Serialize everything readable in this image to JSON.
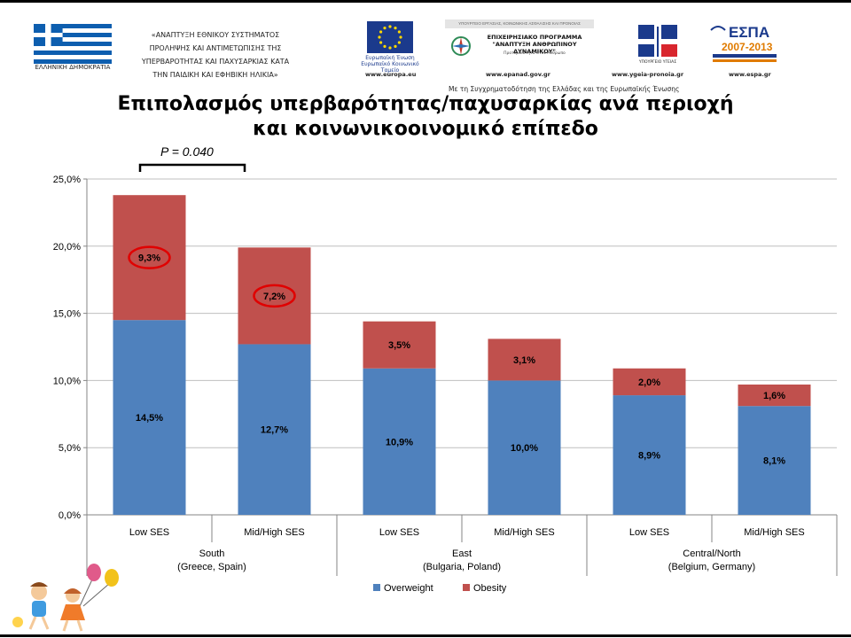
{
  "header": {
    "flag_caption": "ΕΛΛΗΝΙΚΗ ΔΗΜΟΚΡΑΤΙΑ",
    "program_lines": [
      "«ΑΝΑΠΤΥΞΗ ΕΘΝΙΚΟΥ ΣΥΣΤΗΜΑΤΟΣ",
      "ΠΡΟΛΗΨΗΣ ΚΑΙ ΑΝΤΙΜΕΤΩΠΙΣΗΣ ΤΗΣ",
      "ΥΠΕΡΒΑΡΟΤΗΤΑΣ ΚΑΙ ΠΑΧΥΣΑΡΚΙΑΣ ΚΑΤΑ",
      "ΤΗΝ ΠΑΙΔΙΚΗ ΚΑΙ ΕΦΗΒΙΚΗ ΗΛΙΚΙΑ»"
    ],
    "eu_caption_1": "Ευρωπαϊκή Ένωση",
    "eu_caption_2": "Ευρωπαϊκό Κοινωνικό Ταμείο",
    "eu_url": "www.europa.eu",
    "ep_topbar": "ΥΠΟΥΡΓΕΙΟ ΕΡΓΑΣΙΑΣ, ΚΟΙΝΩΝΙΚΗΣ ΑΣΦΑΛΙΣΗΣ ΚΑΙ ΠΡΟΝΟΙΑΣ",
    "ep_title_1": "ΕΠΙΧΕΙΡΗΣΙΑΚΟ ΠΡΟΓΡΑΜΜΑ",
    "ep_title_2": "\"ΑΝΑΠΤΥΞΗ ΑΝΘΡΩΠΙΝΟΥ ΔΥΝΑΜΙΚΟΥ\"",
    "ep_sub": "Προτεραιότητα στον Άνθρωπο",
    "ep_url": "www.epanad.gov.gr",
    "ministry_caption": "ΥΠΟΥΡΓΕΙΟ ΥΓΕΙΑΣ",
    "ministry_url": "www.ygeia-pronoia.gr",
    "espa_word": "ΕΣΠΑ",
    "espa_years": "2007-2013",
    "espa_url": "www.espa.gr",
    "cofund": "Με τη Συγχρηματοδότηση της Ελλάδας και της Ευρωπαϊκής Ένωσης"
  },
  "title_line_1": "Επιπολασμός υπερβαρότητας/παχυσαρκίας ανά περιοχή",
  "title_line_2": "και κοινωνικοοινομικό επίπεδο",
  "colors": {
    "overweight": "#4f81bd",
    "obesity": "#c0504d",
    "highlight": "#e00000",
    "grid": "#bfbfbf",
    "axis": "#868686"
  },
  "chart_data": {
    "type": "bar",
    "stacked": true,
    "categories": [
      "Low SES",
      "Mid/High SES",
      "Low SES",
      "Mid/High SES",
      "Low SES",
      "Mid/High SES"
    ],
    "groups": [
      {
        "name": "South",
        "sub": "(Greece, Spain)",
        "categories": [
          0,
          1
        ]
      },
      {
        "name": "East",
        "sub": "(Bulgaria, Poland)",
        "categories": [
          2,
          3
        ]
      },
      {
        "name": "Central/North",
        "sub": "(Belgium, Germany)",
        "categories": [
          4,
          5
        ]
      }
    ],
    "series": [
      {
        "name": "Overweight",
        "values": [
          14.5,
          12.7,
          10.9,
          10.0,
          8.9,
          8.1
        ],
        "labels": [
          "14,5%",
          "12,7%",
          "10,9%",
          "10,0%",
          "8,9%",
          "8,1%"
        ]
      },
      {
        "name": "Obesity",
        "values": [
          9.3,
          7.2,
          3.5,
          3.1,
          2.0,
          1.6
        ],
        "labels": [
          "9,3%",
          "7,2%",
          "3,5%",
          "3,1%",
          "2,0%",
          "1,6%"
        ]
      }
    ],
    "ylim": [
      0,
      25
    ],
    "yticks": [
      0,
      5,
      10,
      15,
      20,
      25
    ],
    "ytick_labels": [
      "0,0%",
      "5,0%",
      "10,0%",
      "15,0%",
      "20,0%",
      "25,0%"
    ],
    "grid": true,
    "legend": "bottom",
    "highlighted_labels": [
      0,
      1
    ],
    "annotation": {
      "text": "P = 0.040",
      "between": [
        0,
        1
      ]
    }
  }
}
